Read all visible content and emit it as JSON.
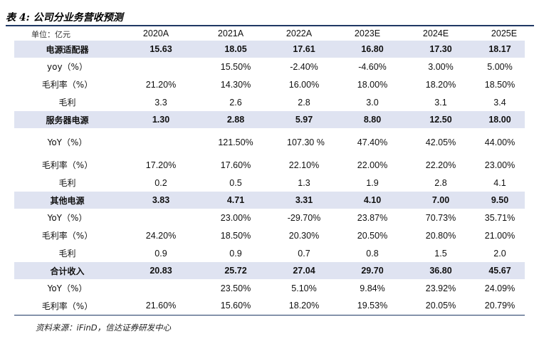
{
  "title": "表 4:  公司分业务营收预测",
  "unit_label": "单位：亿元",
  "years": [
    "2020A",
    "2021A",
    "2022A",
    "2023E",
    "2024E",
    "2025E"
  ],
  "rows": [
    {
      "kind": "section",
      "label": "电源适配器",
      "values": [
        "15.63",
        "18.05",
        "17.61",
        "16.80",
        "17.30",
        "18.17"
      ]
    },
    {
      "kind": "sub",
      "label": "yoy（%）",
      "values": [
        "",
        "15.50%",
        "-2.40%",
        "-4.60%",
        "3.00%",
        "5.00%"
      ]
    },
    {
      "kind": "sub",
      "label": "毛利率（%）",
      "values": [
        "21.20%",
        "14.30%",
        "16.00%",
        "18.00%",
        "18.20%",
        "18.50%"
      ]
    },
    {
      "kind": "sub",
      "label": "毛利",
      "values": [
        "3.3",
        "2.6",
        "2.8",
        "3.0",
        "3.1",
        "3.4"
      ]
    },
    {
      "kind": "section",
      "label": "服务器电源",
      "values": [
        "1.30",
        "2.88",
        "5.97",
        "8.80",
        "12.50",
        "18.00"
      ]
    },
    {
      "kind": "sub",
      "label": "YoY（%）",
      "tall": true,
      "values": [
        "",
        "121.50%",
        "107.30 %",
        "47.40%",
        "42.05%",
        "44.00%"
      ]
    },
    {
      "kind": "sub",
      "label": "毛利率（%）",
      "values": [
        "17.20%",
        "17.60%",
        "22.10%",
        "22.00%",
        "22.20%",
        "23.00%"
      ]
    },
    {
      "kind": "sub",
      "label": "毛利",
      "values": [
        "0.2",
        "0.5",
        "1.3",
        "1.9",
        "2.8",
        "4.1"
      ]
    },
    {
      "kind": "section",
      "label": "其他电源",
      "values": [
        "3.83",
        "4.71",
        "3.31",
        "4.10",
        "7.00",
        "9.50"
      ]
    },
    {
      "kind": "sub",
      "label": "YoY（%）",
      "values": [
        "",
        "23.00%",
        "-29.70%",
        "23.87%",
        "70.73%",
        "35.71%"
      ]
    },
    {
      "kind": "sub",
      "label": "毛利率（%）",
      "values": [
        "24.20%",
        "18.50%",
        "20.30%",
        "20.50%",
        "20.80%",
        "21.00%"
      ]
    },
    {
      "kind": "sub",
      "label": "毛利",
      "values": [
        "0.9",
        "0.9",
        "0.7",
        "0.8",
        "1.5",
        "2.0"
      ]
    },
    {
      "kind": "section",
      "label": "合计收入",
      "values": [
        "20.83",
        "25.72",
        "27.04",
        "29.70",
        "36.80",
        "45.67"
      ]
    },
    {
      "kind": "sub",
      "label": "YoY（%）",
      "values": [
        "",
        "23.50%",
        "5.10%",
        "9.84%",
        "23.92%",
        "24.09%"
      ]
    },
    {
      "kind": "sub",
      "label": "毛利率（%）",
      "values": [
        "21.60%",
        "15.60%",
        "18.20%",
        "19.53%",
        "20.05%",
        "20.79%"
      ]
    }
  ],
  "source": "资料来源：iFinD，信达证券研发中心"
}
